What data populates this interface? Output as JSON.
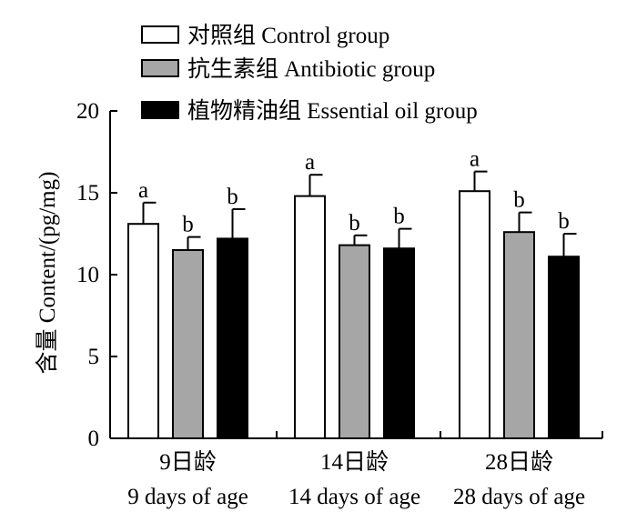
{
  "chart_data": {
    "type": "bar",
    "ylabel": "含量 Content/(pg/mg)",
    "ylim": [
      0,
      20
    ],
    "yticks": [
      "0",
      "5",
      "10",
      "15",
      "20"
    ],
    "categories": [
      {
        "line1": "9日龄",
        "line2": "9 days of age"
      },
      {
        "line1": "14日龄",
        "line2": "14 days of age"
      },
      {
        "line1": "28日龄",
        "line2": "28 days of age"
      }
    ],
    "series": [
      {
        "name": "对照组 Control group",
        "color": "#ffffff",
        "values": [
          13.1,
          14.8,
          15.1
        ],
        "errors": [
          1.3,
          1.3,
          1.2
        ],
        "labels": [
          "a",
          "a",
          "a"
        ]
      },
      {
        "name": "抗生素组 Antibiotic group",
        "color": "#a6a6a6",
        "values": [
          11.5,
          11.8,
          12.6
        ],
        "errors": [
          0.8,
          0.6,
          1.2
        ],
        "labels": [
          "b",
          "b",
          "b"
        ]
      },
      {
        "name": "植物精油组 Essential oil group",
        "color": "#000000",
        "values": [
          12.2,
          11.6,
          11.1
        ],
        "errors": [
          1.8,
          1.2,
          1.4
        ],
        "labels": [
          "b",
          "b",
          "b"
        ]
      }
    ],
    "grid": false,
    "legend_position": "top"
  }
}
